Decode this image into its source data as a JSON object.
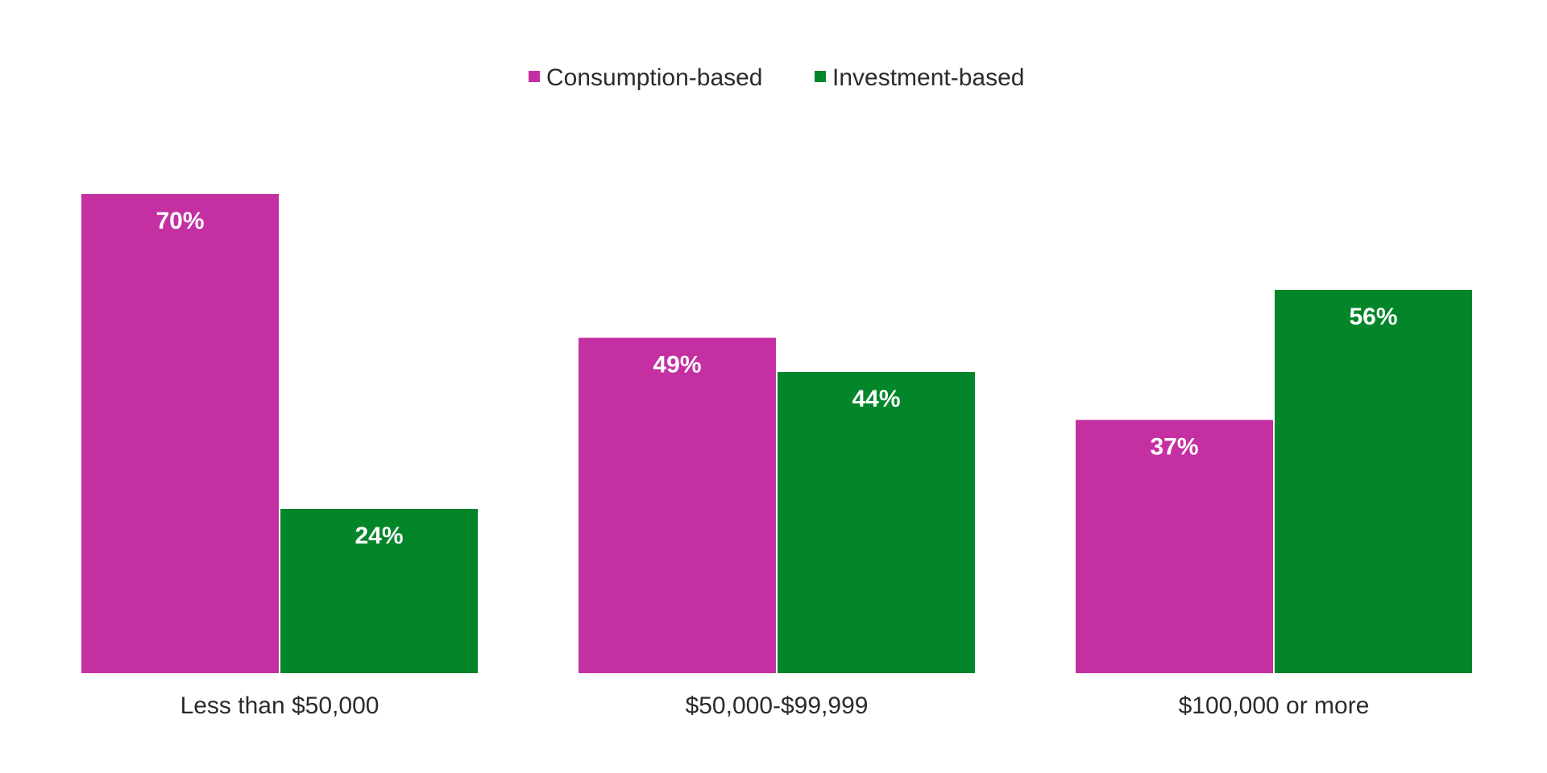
{
  "chart_data": {
    "type": "bar",
    "title": "",
    "xlabel": "",
    "ylabel": "",
    "ylim": [
      0,
      70
    ],
    "grid": false,
    "legend_position": "top-center",
    "categories": [
      "Less than $50,000",
      "$50,000-$99,999",
      "$100,000 or more"
    ],
    "series": [
      {
        "name": "Consumption-based",
        "color": "#c430a2",
        "values": [
          70,
          49,
          37
        ],
        "labels": [
          "70%",
          "49%",
          "37%"
        ]
      },
      {
        "name": "Investment-based",
        "color": "#03862a",
        "values": [
          24,
          44,
          56
        ],
        "labels": [
          "24%",
          "44%",
          "56%"
        ]
      }
    ]
  }
}
